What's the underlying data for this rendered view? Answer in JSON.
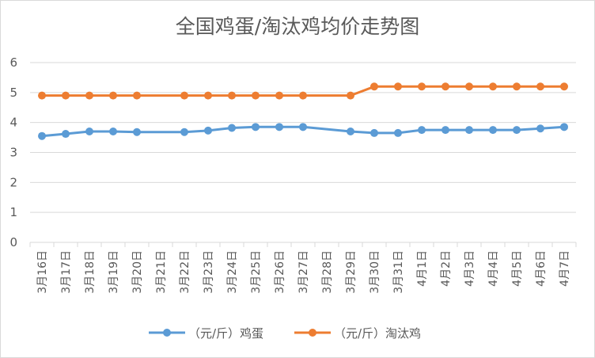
{
  "chart_data": {
    "type": "line",
    "title": "全国鸡蛋/淘汰鸡均价走势图",
    "xlabel": "",
    "ylabel": "",
    "ylim": [
      0,
      6
    ],
    "yticks": [
      "0",
      "1",
      "2",
      "3",
      "4",
      "5",
      "6"
    ],
    "grid": true,
    "legend_position": "bottom",
    "categories": [
      "3月16日",
      "3月17日",
      "3月18日",
      "3月19日",
      "3月20日",
      "3月21日",
      "3月22日",
      "3月23日",
      "3月24日",
      "3月25日",
      "3月26日",
      "3月27日",
      "3月28日",
      "3月29日",
      "3月30日",
      "3月31日",
      "4月1日",
      "4月2日",
      "4月3日",
      "4月4日",
      "4月5日",
      "4月6日",
      "4月7日"
    ],
    "series": [
      {
        "name": "（元/斤）鸡蛋",
        "color": "#5b9bd5",
        "values": [
          3.55,
          3.62,
          3.7,
          3.7,
          3.68,
          null,
          3.68,
          3.73,
          3.82,
          3.85,
          3.85,
          3.85,
          null,
          3.7,
          3.65,
          3.65,
          3.75,
          3.75,
          3.75,
          3.75,
          3.75,
          3.8,
          3.85
        ]
      },
      {
        "name": "（元/斤）淘汰鸡",
        "color": "#ed7d31",
        "values": [
          4.9,
          4.9,
          4.9,
          4.9,
          4.9,
          null,
          4.9,
          4.9,
          4.9,
          4.9,
          4.9,
          4.9,
          null,
          4.9,
          5.2,
          5.2,
          5.2,
          5.2,
          5.2,
          5.2,
          5.2,
          5.2,
          5.2
        ]
      }
    ]
  }
}
